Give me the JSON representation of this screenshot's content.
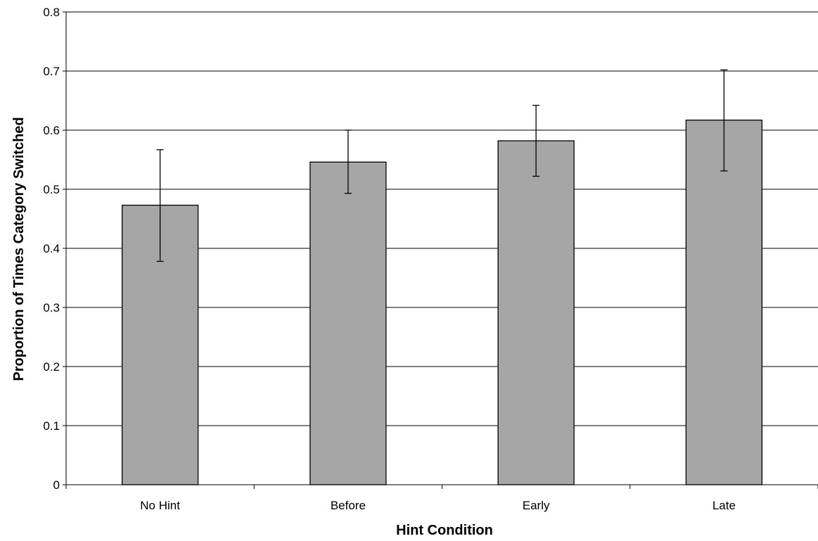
{
  "chart_data": {
    "type": "bar",
    "title": "",
    "xlabel": "Hint Condition",
    "ylabel": "Proportion of Times Category Switched",
    "categories": [
      "No Hint",
      "Before",
      "Early",
      "Late"
    ],
    "values": [
      0.473,
      0.546,
      0.582,
      0.617
    ],
    "error_bars": {
      "lower": [
        0.378,
        0.493,
        0.522,
        0.531
      ],
      "upper": [
        0.567,
        0.6,
        0.642,
        0.702
      ]
    },
    "ylim": [
      0,
      0.8
    ],
    "yticks": [
      "0",
      "0.1",
      "0.2",
      "0.3",
      "0.4",
      "0.5",
      "0.6",
      "0.7",
      "0.8"
    ],
    "grid": "horizontal",
    "legend": "none",
    "colors": {
      "bar_fill": "#a6a6a6",
      "bar_stroke": "#000000",
      "grid": "#000000",
      "axis": "#000000"
    }
  }
}
